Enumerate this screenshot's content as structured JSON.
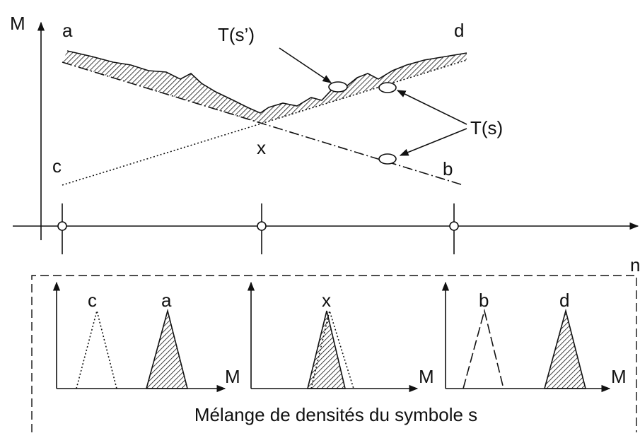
{
  "axis_labels": {
    "vertical": "M",
    "horizontal": "n"
  },
  "line_labels": {
    "a": "a",
    "d": "d",
    "c": "c",
    "b": "b"
  },
  "intersection_label": "x",
  "annotations": [
    "T(s’)",
    "T(s)"
  ],
  "panels": [
    {
      "peaks": [
        "c",
        "a"
      ],
      "axis_label": "M"
    },
    {
      "peaks": [
        "x"
      ],
      "axis_label": "M"
    },
    {
      "peaks": [
        "b",
        "d"
      ],
      "axis_label": "M"
    }
  ],
  "caption": "Mélange de densités du symbole s"
}
